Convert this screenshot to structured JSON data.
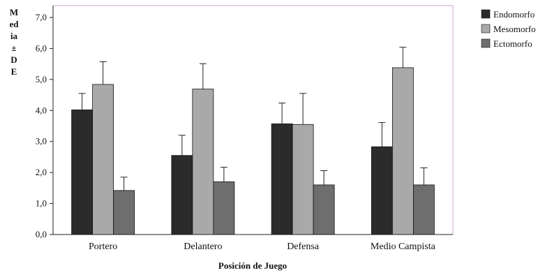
{
  "chart_data": {
    "type": "bar",
    "ylabel_lines": [
      "M",
      "ed",
      "ia",
      "±",
      "D",
      "E"
    ],
    "xlabel": "Posición de Juego",
    "categories": [
      "Portero",
      "Delantero",
      "Defensa",
      "Medio Campista"
    ],
    "y_ticks": [
      "0,0",
      "1,0",
      "2,0",
      "3,0",
      "4,0",
      "5,0",
      "6,0",
      "7,0"
    ],
    "ylim": [
      0,
      7.5
    ],
    "grid": false,
    "legend_position": "top-right",
    "series": [
      {
        "name": "Endomorfo",
        "color": "#2b2b2b",
        "values": [
          4.02,
          2.55,
          3.57,
          2.83
        ],
        "errors": [
          0.53,
          0.65,
          0.67,
          0.78
        ]
      },
      {
        "name": "Mesomorfo",
        "color": "#a9a9a9",
        "values": [
          4.84,
          4.69,
          3.55,
          5.38
        ],
        "errors": [
          0.73,
          0.82,
          1.0,
          0.66
        ]
      },
      {
        "name": "Ectomorfo",
        "color": "#6e6e6e",
        "values": [
          1.42,
          1.7,
          1.6,
          1.6
        ],
        "errors": [
          0.43,
          0.47,
          0.46,
          0.55
        ]
      }
    ]
  }
}
